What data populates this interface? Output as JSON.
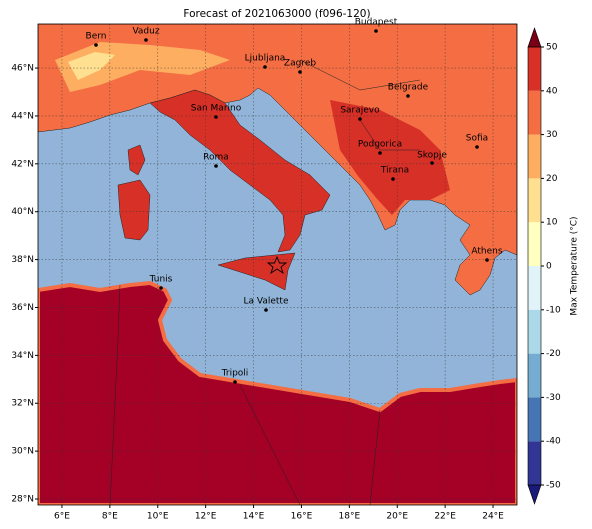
{
  "chart_data": {
    "type": "map",
    "title": "Forecast of 2021063000 (f096-120)",
    "xlim": [
      5,
      25
    ],
    "ylim": [
      27.75,
      47.84
    ],
    "xticks": [
      {
        "value": 6,
        "label": "6°E"
      },
      {
        "value": 8,
        "label": "8°E"
      },
      {
        "value": 10,
        "label": "10°E"
      },
      {
        "value": 12,
        "label": "12°E"
      },
      {
        "value": 14,
        "label": "14°E"
      },
      {
        "value": 16,
        "label": "16°E"
      },
      {
        "value": 18,
        "label": "18°E"
      },
      {
        "value": 20,
        "label": "20°E"
      },
      {
        "value": 22,
        "label": "22°E"
      },
      {
        "value": 24,
        "label": "24°E"
      }
    ],
    "yticks": [
      {
        "value": 28,
        "label": "28°N"
      },
      {
        "value": 30,
        "label": "30°N"
      },
      {
        "value": 32,
        "label": "32°N"
      },
      {
        "value": 34,
        "label": "34°N"
      },
      {
        "value": 36,
        "label": "36°N"
      },
      {
        "value": 38,
        "label": "38°N"
      },
      {
        "value": 40,
        "label": "40°N"
      },
      {
        "value": 42,
        "label": "42°N"
      },
      {
        "value": 44,
        "label": "44°N"
      },
      {
        "value": 46,
        "label": "46°N"
      }
    ],
    "grid": true,
    "cities": [
      "Bern",
      "Vaduz",
      "Budapest",
      "Ljubljana",
      "Zagreb",
      "Belgrade",
      "San Marino",
      "Sarajevo",
      "Sofia",
      "Podgorica",
      "Skopje",
      "Roma",
      "Tirana",
      "Athens",
      "Tunis",
      "La Valette",
      "Tripoli"
    ],
    "colorbar": {
      "label": "Max Temperature (°C)",
      "clim": [
        -50,
        50
      ],
      "ticks": [
        -50,
        -40,
        -30,
        -20,
        -10,
        0,
        10,
        20,
        30,
        40,
        50
      ],
      "colors": [
        "#313695",
        "#4575b4",
        "#74add1",
        "#abd9e9",
        "#e0f3f8",
        "#ffffbf",
        "#fee090",
        "#fdae61",
        "#f46d43",
        "#d73027",
        "#a50026"
      ],
      "under_color": "#1a1a7a",
      "over_color": "#7a0016"
    }
  }
}
